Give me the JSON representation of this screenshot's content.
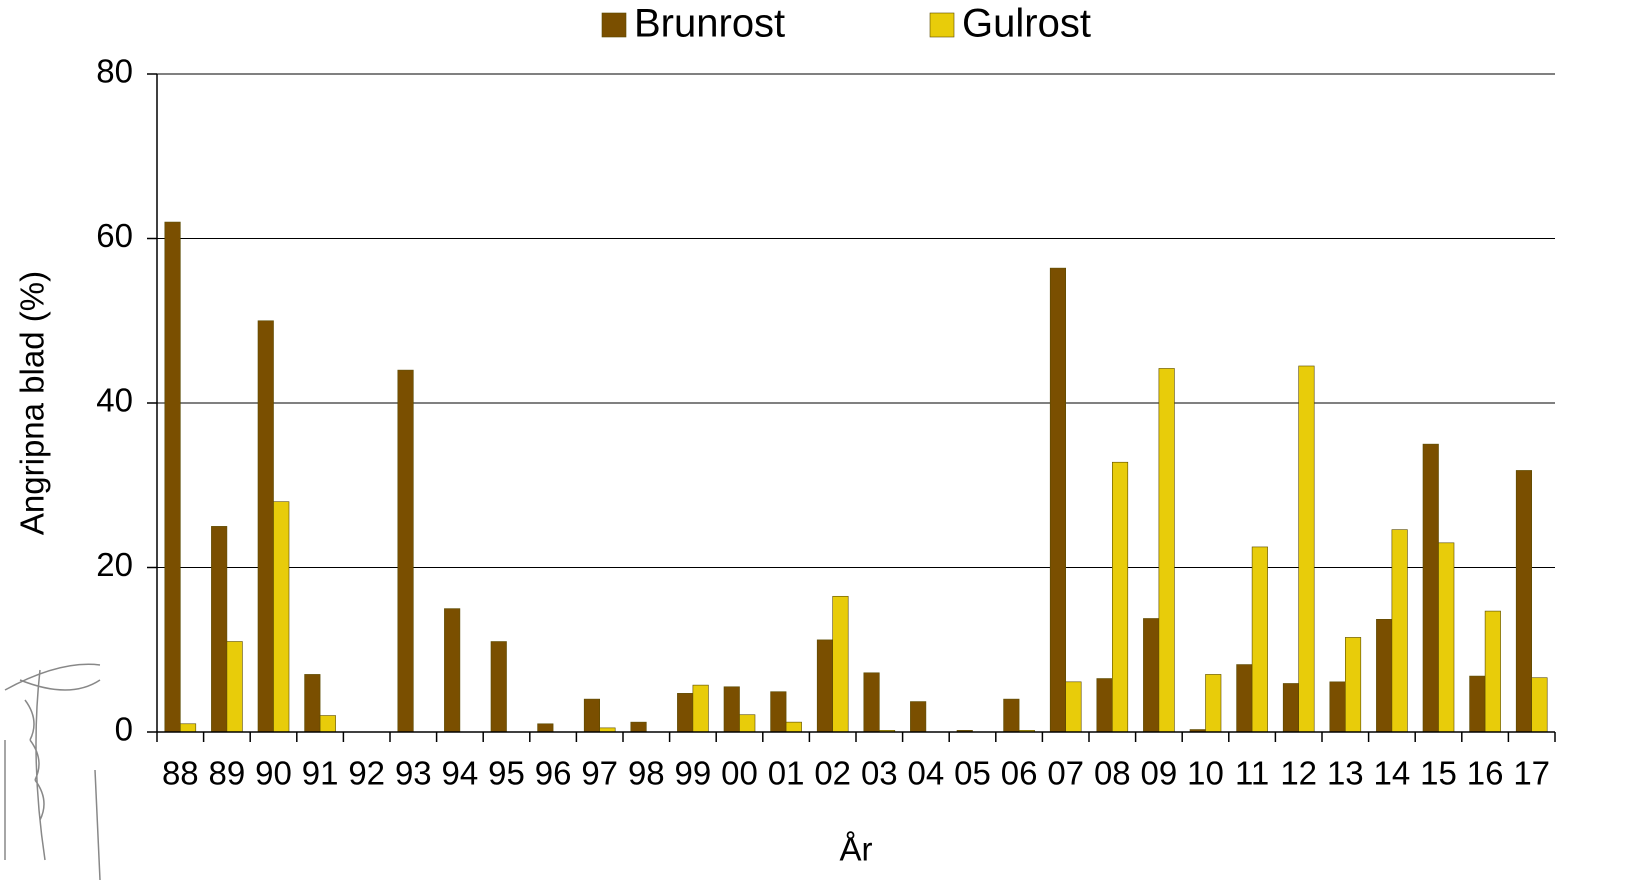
{
  "chart_data": {
    "type": "bar",
    "y_label": "Angripna blad (%)",
    "x_label": "År",
    "categories": [
      "88",
      "89",
      "90",
      "91",
      "92",
      "93",
      "94",
      "95",
      "96",
      "97",
      "98",
      "99",
      "00",
      "01",
      "02",
      "03",
      "04",
      "05",
      "06",
      "07",
      "08",
      "09",
      "10",
      "11",
      "12",
      "13",
      "14",
      "15",
      "16",
      "17"
    ],
    "series": [
      {
        "name": "Brunrost",
        "color": "#7a4f00",
        "values": [
          62,
          25,
          50,
          7,
          0,
          44,
          15,
          11,
          1,
          4,
          1.2,
          4.7,
          5.5,
          4.9,
          11.2,
          7.2,
          3.7,
          0.2,
          4,
          56.4,
          6.5,
          13.8,
          0.3,
          8.2,
          5.9,
          6.1,
          13.7,
          35,
          6.8,
          31.8
        ]
      },
      {
        "name": "Gulrost",
        "color": "#e8cc0a",
        "values": [
          1,
          11,
          28,
          2,
          0,
          0,
          0,
          0,
          0,
          0.5,
          0,
          5.7,
          2.1,
          1.2,
          16.5,
          0.2,
          0,
          0,
          0.2,
          6.1,
          32.8,
          44.2,
          7,
          22.5,
          44.5,
          11.5,
          24.6,
          23,
          14.7,
          6.6
        ]
      }
    ],
    "ylim": [
      0,
      80
    ],
    "yticks": [
      0,
      20,
      40,
      60,
      80
    ],
    "grid": true,
    "legend": "top"
  }
}
